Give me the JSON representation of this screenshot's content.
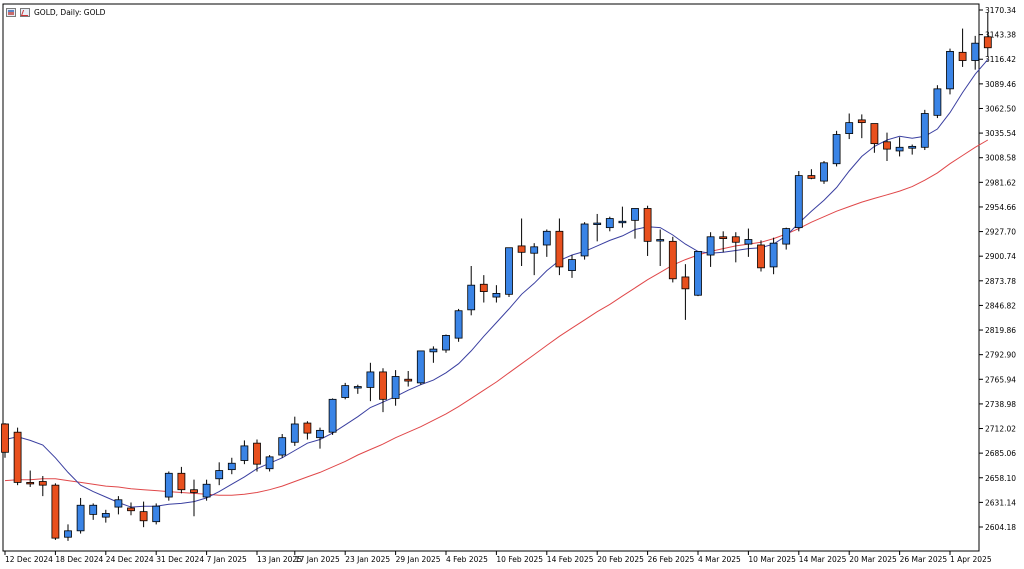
{
  "window": {
    "title": "GOLD, Daily: GOLD",
    "icons": [
      "chart-window-icon",
      "line-chart-icon"
    ]
  },
  "colors": {
    "bull": "#3a84e6",
    "bear": "#e8501e",
    "candle_border": "#000000",
    "ma_fast": "#3a3fa0",
    "ma_slow": "#e0484a",
    "axis_text": "#000000"
  },
  "chart_data": {
    "type": "candlestick",
    "title": "GOLD, Daily: GOLD",
    "symbol": "GOLD",
    "timeframe": "Daily",
    "ylim": [
      2590,
      3175
    ],
    "grid": false,
    "y_tick_labels": [
      "3170.34",
      "3143.38",
      "3116.42",
      "3089.46",
      "3062.50",
      "3035.54",
      "3008.58",
      "2981.62",
      "2954.66",
      "2927.70",
      "2900.74",
      "2873.78",
      "2846.82",
      "2819.86",
      "2792.90",
      "2765.94",
      "2738.98",
      "2712.02",
      "2685.06",
      "2658.10",
      "2631.14",
      "2604.18"
    ],
    "x_tick_labels": [
      "12 Dec 2024",
      "18 Dec 2024",
      "24 Dec 2024",
      "31 Dec 2024",
      "7 Jan 2025",
      "13 Jan 2025",
      "17 Jan 2025",
      "23 Jan 2025",
      "29 Jan 2025",
      "4 Feb 2025",
      "10 Feb 2025",
      "14 Feb 2025",
      "20 Feb 2025",
      "26 Feb 2025",
      "4 Mar 2025",
      "10 Mar 2025",
      "14 Mar 2025",
      "20 Mar 2025",
      "26 Mar 2025",
      "1 Apr 2025"
    ],
    "x_label_index": [
      0,
      4,
      8,
      12,
      16,
      20,
      23,
      27,
      31,
      35,
      39,
      43,
      47,
      51,
      55,
      59,
      63,
      67,
      71,
      75
    ],
    "candles": [
      [
        2717,
        2718,
        2680,
        2686
      ],
      [
        2708,
        2713,
        2650,
        2653
      ],
      [
        2653,
        2666,
        2648,
        2652
      ],
      [
        2654,
        2660,
        2638,
        2650
      ],
      [
        2650,
        2652,
        2590,
        2592
      ],
      [
        2593,
        2607,
        2589,
        2600
      ],
      [
        2600,
        2636,
        2597,
        2628
      ],
      [
        2618,
        2630,
        2612,
        2628
      ],
      [
        2615,
        2623,
        2609,
        2619
      ],
      [
        2626,
        2638,
        2618,
        2634
      ],
      [
        2625,
        2631,
        2617,
        2622
      ],
      [
        2621,
        2632,
        2604,
        2611
      ],
      [
        2610,
        2630,
        2607,
        2627
      ],
      [
        2637,
        2665,
        2633,
        2663
      ],
      [
        2663,
        2670,
        2641,
        2645
      ],
      [
        2645,
        2656,
        2616,
        2642
      ],
      [
        2637,
        2656,
        2633,
        2651
      ],
      [
        2657,
        2675,
        2650,
        2666
      ],
      [
        2667,
        2680,
        2662,
        2674
      ],
      [
        2677,
        2699,
        2673,
        2693
      ],
      [
        2696,
        2700,
        2665,
        2673
      ],
      [
        2668,
        2683,
        2665,
        2681
      ],
      [
        2683,
        2706,
        2680,
        2702
      ],
      [
        2697,
        2725,
        2693,
        2717
      ],
      [
        2718,
        2720,
        2700,
        2707
      ],
      [
        2702,
        2713,
        2690,
        2710
      ],
      [
        2708,
        2745,
        2705,
        2744
      ],
      [
        2746,
        2762,
        2744,
        2759
      ],
      [
        2757,
        2760,
        2750,
        2758
      ],
      [
        2757,
        2784,
        2742,
        2774
      ],
      [
        2774,
        2778,
        2730,
        2744
      ],
      [
        2745,
        2776,
        2737,
        2769
      ],
      [
        2766,
        2775,
        2758,
        2764
      ],
      [
        2762,
        2797,
        2760,
        2797
      ],
      [
        2796,
        2802,
        2784,
        2799
      ],
      [
        2798,
        2815,
        2795,
        2814
      ],
      [
        2811,
        2843,
        2807,
        2841
      ],
      [
        2842,
        2890,
        2836,
        2869
      ],
      [
        2870,
        2880,
        2850,
        2862
      ],
      [
        2856,
        2869,
        2850,
        2860
      ],
      [
        2859,
        2910,
        2856,
        2910
      ],
      [
        2912,
        2942,
        2890,
        2905
      ],
      [
        2904,
        2915,
        2880,
        2911
      ],
      [
        2913,
        2930,
        2900,
        2928
      ],
      [
        2928,
        2942,
        2880,
        2889
      ],
      [
        2885,
        2902,
        2877,
        2897
      ],
      [
        2901,
        2938,
        2897,
        2936
      ],
      [
        2936,
        2947,
        2917,
        2937
      ],
      [
        2932,
        2944,
        2928,
        2942
      ],
      [
        2938,
        2955,
        2932,
        2939
      ],
      [
        2940,
        2953,
        2920,
        2953
      ],
      [
        2953,
        2956,
        2901,
        2917
      ],
      [
        2919,
        2930,
        2890,
        2919
      ],
      [
        2917,
        2922,
        2872,
        2876
      ],
      [
        2878,
        2892,
        2831,
        2865
      ],
      [
        2858,
        2905,
        2857,
        2906
      ],
      [
        2902,
        2927,
        2889,
        2922
      ],
      [
        2922,
        2928,
        2905,
        2920
      ],
      [
        2922,
        2927,
        2894,
        2916
      ],
      [
        2914,
        2931,
        2900,
        2919
      ],
      [
        2913,
        2918,
        2884,
        2888
      ],
      [
        2889,
        2921,
        2881,
        2915
      ],
      [
        2914,
        2932,
        2908,
        2931
      ],
      [
        2932,
        2994,
        2928,
        2989
      ],
      [
        2989,
        2996,
        2985,
        2986
      ],
      [
        2983,
        3005,
        2980,
        3003
      ],
      [
        3002,
        3038,
        2999,
        3034
      ],
      [
        3035,
        3057,
        3029,
        3047
      ],
      [
        3050,
        3056,
        3030,
        3047
      ],
      [
        3046,
        3042,
        3014,
        3024
      ],
      [
        3026,
        3036,
        3005,
        3018
      ],
      [
        3016,
        3031,
        3010,
        3020
      ],
      [
        3019,
        3023,
        3012,
        3021
      ],
      [
        3020,
        3061,
        3017,
        3057
      ],
      [
        3055,
        3088,
        3052,
        3084
      ],
      [
        3084,
        3128,
        3078,
        3125
      ],
      [
        3124,
        3150,
        3108,
        3115
      ],
      [
        3115,
        3142,
        3105,
        3134
      ],
      [
        3141,
        3168,
        3119,
        3129
      ]
    ],
    "series": [
      {
        "type": "line",
        "values": [
          2700,
          2703,
          2699,
          2694,
          2680,
          2664,
          2650,
          2643,
          2637,
          2631,
          2626,
          2627,
          2627,
          2629,
          2630,
          2632,
          2636,
          2643,
          2651,
          2659,
          2668,
          2674,
          2680,
          2688,
          2696,
          2700,
          2707,
          2716,
          2725,
          2735,
          2741,
          2747,
          2754,
          2760,
          2765,
          2773,
          2783,
          2797,
          2813,
          2828,
          2843,
          2859,
          2871,
          2885,
          2896,
          2902,
          2906,
          2912,
          2918,
          2923,
          2930,
          2933,
          2932,
          2924,
          2914,
          2906,
          2904,
          2905,
          2907,
          2909,
          2910,
          2914,
          2923,
          2937,
          2950,
          2962,
          2976,
          2994,
          3010,
          3021,
          3028,
          3032,
          3030,
          3032,
          3040,
          3058,
          3080,
          3100,
          3116
        ]
      },
      {
        "type": "line",
        "values": [
          2655,
          2656,
          2656,
          2657,
          2657,
          2655,
          2653,
          2651,
          2649,
          2648,
          2646,
          2645,
          2644,
          2643,
          2642,
          2641,
          2640,
          2639,
          2639,
          2640,
          2642,
          2645,
          2649,
          2654,
          2659,
          2664,
          2670,
          2676,
          2683,
          2689,
          2695,
          2702,
          2708,
          2714,
          2721,
          2728,
          2736,
          2745,
          2754,
          2763,
          2773,
          2783,
          2793,
          2803,
          2813,
          2822,
          2831,
          2840,
          2848,
          2857,
          2866,
          2875,
          2883,
          2891,
          2897,
          2902,
          2906,
          2909,
          2912,
          2914,
          2916,
          2920,
          2925,
          2931,
          2938,
          2944,
          2950,
          2955,
          2960,
          2964,
          2968,
          2972,
          2977,
          2984,
          2992,
          3002,
          3011,
          3020,
          3028
        ]
      }
    ]
  }
}
